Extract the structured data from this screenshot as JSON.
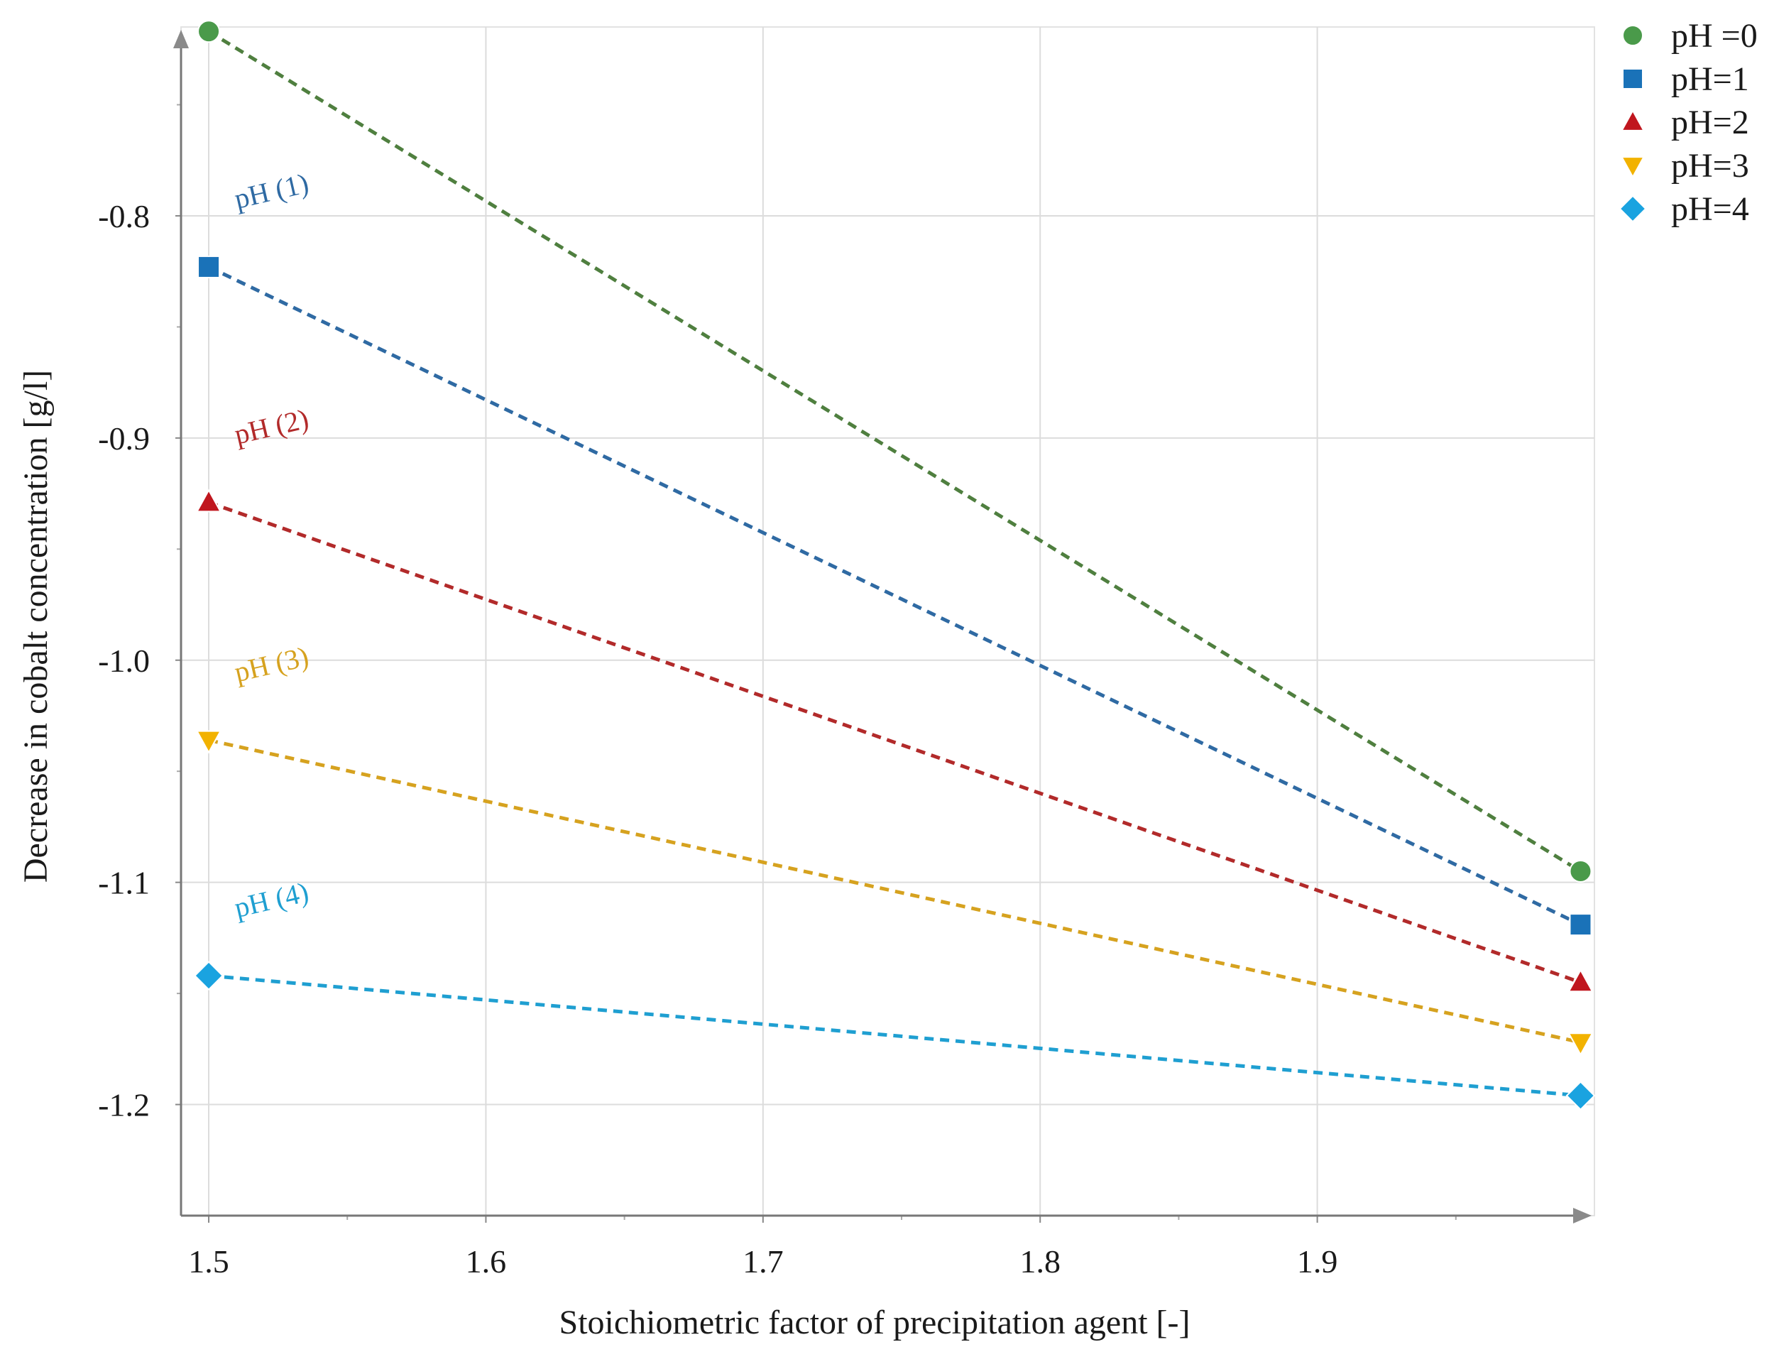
{
  "chart_data": {
    "type": "line",
    "title": "",
    "xlabel": "Stoichiometric factor of precipitation agent [-]",
    "ylabel": "Decrease in cobalt concentration [g/l]",
    "xlim": [
      1.49,
      2.0
    ],
    "ylim": [
      -1.25,
      -0.715
    ],
    "x_ticks": [
      1.5,
      1.6,
      1.7,
      1.8,
      1.9
    ],
    "x_tick_labels": [
      "1.5",
      "1.6",
      "1.7",
      "1.8",
      "1.9"
    ],
    "y_ticks": [
      -0.8,
      -0.9,
      -1.0,
      -1.1,
      -1.2
    ],
    "y_tick_labels": [
      "-0.8",
      "-0.9",
      "-1.0",
      "-1.1",
      "-1.2"
    ],
    "grid": true,
    "line_style": "dashed",
    "legend_position": "top-right",
    "series": [
      {
        "name": "pH =0",
        "marker": "circle",
        "color": "#4a9a4a",
        "line_color": "#4f7f3f",
        "x": [
          1.5,
          1.995
        ],
        "values": [
          -0.717,
          -1.095
        ],
        "annotation": ""
      },
      {
        "name": "pH=1",
        "marker": "square",
        "color": "#1a72b8",
        "line_color": "#2f6aa3",
        "x": [
          1.5,
          1.995
        ],
        "values": [
          -0.823,
          -1.119
        ],
        "annotation": "pH (1)"
      },
      {
        "name": "pH=2",
        "marker": "triangle-up",
        "color": "#c0161e",
        "line_color": "#b22a2a",
        "x": [
          1.5,
          1.995
        ],
        "values": [
          -0.929,
          -1.145
        ],
        "annotation": "pH (2)"
      },
      {
        "name": "pH=3",
        "marker": "triangle-down",
        "color": "#f2b200",
        "line_color": "#d6a21f",
        "x": [
          1.5,
          1.995
        ],
        "values": [
          -1.036,
          -1.172
        ],
        "annotation": "pH (3)"
      },
      {
        "name": "pH=4",
        "marker": "diamond",
        "color": "#1aa3e0",
        "line_color": "#1f9fd1",
        "x": [
          1.5,
          1.995
        ],
        "values": [
          -1.142,
          -1.196
        ],
        "annotation": "pH (4)"
      }
    ]
  }
}
